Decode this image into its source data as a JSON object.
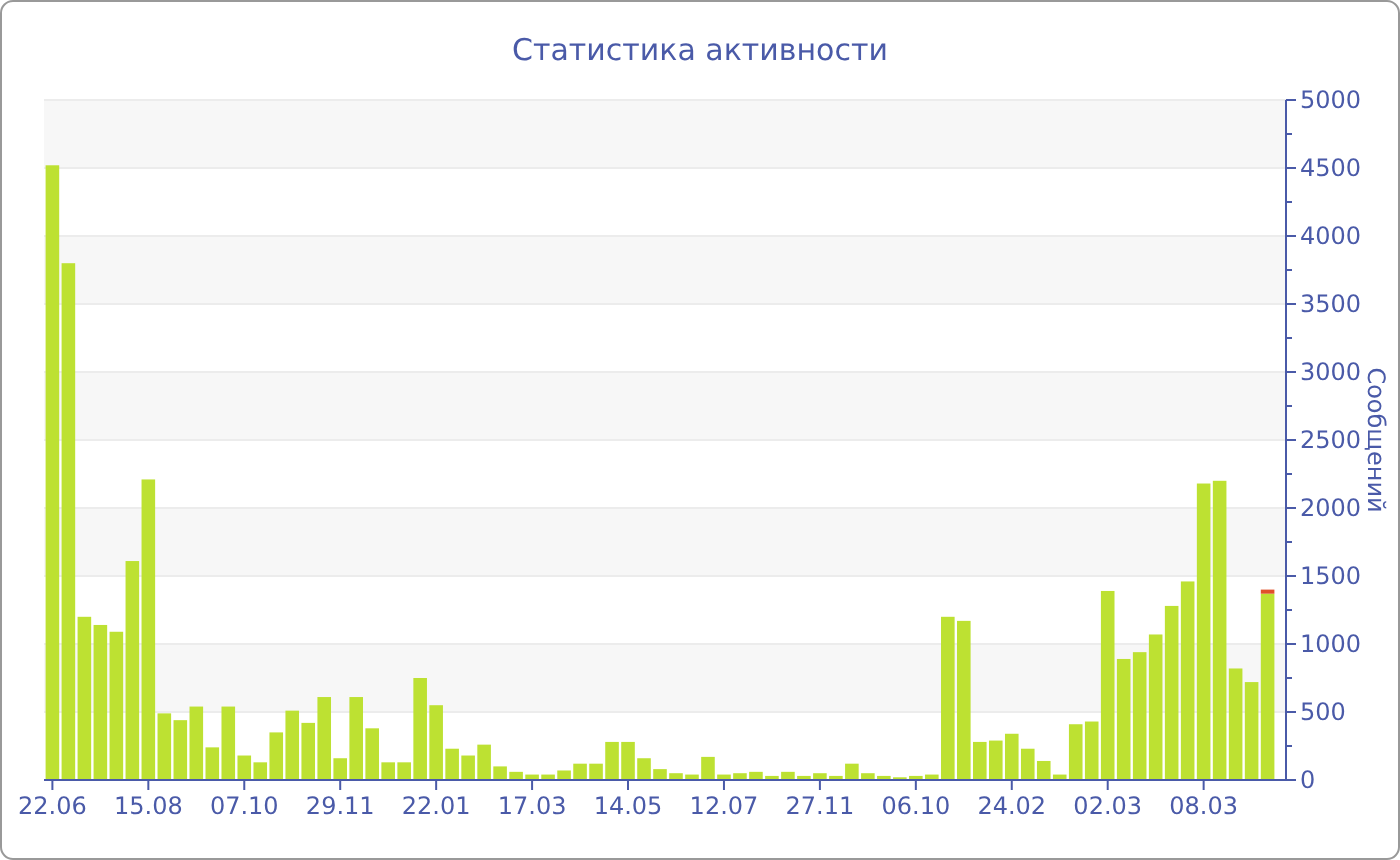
{
  "chart_data": {
    "type": "bar",
    "title": "Статистика активности",
    "ylabel": "Сообщений",
    "stacked": true,
    "categories": [
      "22.06",
      null,
      null,
      null,
      null,
      null,
      "15.08",
      null,
      null,
      null,
      null,
      null,
      "07.10",
      null,
      null,
      null,
      null,
      null,
      "29.11",
      null,
      null,
      null,
      null,
      null,
      "22.01",
      null,
      null,
      null,
      null,
      null,
      "17.03",
      null,
      null,
      null,
      null,
      null,
      "14.05",
      null,
      null,
      null,
      null,
      null,
      "12.07",
      null,
      null,
      null,
      null,
      null,
      "27.11",
      null,
      null,
      null,
      null,
      null,
      "06.10",
      null,
      null,
      null,
      null,
      null,
      "24.02",
      null,
      null,
      null,
      null,
      null,
      "02.03",
      null,
      null,
      null,
      null,
      null,
      "08.03",
      null,
      null,
      null,
      null
    ],
    "series": [
      {
        "color": "#bde132",
        "values": [
          4520,
          3800,
          1200,
          1140,
          1090,
          1610,
          2210,
          490,
          440,
          540,
          240,
          540,
          180,
          130,
          350,
          510,
          420,
          610,
          160,
          610,
          380,
          130,
          130,
          750,
          550,
          230,
          180,
          260,
          100,
          60,
          40,
          40,
          70,
          120,
          120,
          280,
          280,
          160,
          80,
          50,
          40,
          170,
          40,
          50,
          60,
          30,
          60,
          30,
          50,
          30,
          120,
          50,
          30,
          20,
          30,
          40,
          1200,
          1170,
          280,
          290,
          340,
          230,
          140,
          40,
          410,
          430,
          1390,
          890,
          940,
          1070,
          1280,
          1460,
          2180,
          2200,
          820,
          720,
          1370
        ]
      },
      {
        "color": "#e0502a",
        "values": [
          null,
          null,
          null,
          null,
          null,
          null,
          null,
          null,
          null,
          null,
          null,
          null,
          null,
          null,
          null,
          null,
          null,
          null,
          null,
          null,
          null,
          null,
          null,
          null,
          null,
          null,
          null,
          null,
          null,
          null,
          null,
          null,
          null,
          null,
          null,
          null,
          null,
          null,
          null,
          null,
          null,
          null,
          null,
          null,
          null,
          null,
          null,
          null,
          null,
          null,
          null,
          null,
          null,
          null,
          null,
          null,
          null,
          null,
          null,
          null,
          null,
          null,
          null,
          null,
          null,
          null,
          null,
          null,
          null,
          null,
          null,
          null,
          null,
          null,
          null,
          null,
          30
        ]
      }
    ],
    "ylim": [
      0,
      5000
    ],
    "yticks": [
      0,
      {
        "value": 250,
        "label": null
      },
      500,
      {
        "value": 750,
        "label": null
      },
      1000,
      {
        "value": 1250,
        "label": null
      },
      1500,
      {
        "value": 1750,
        "label": null
      },
      2000,
      {
        "value": 2250,
        "label": null
      },
      2500,
      {
        "value": 2750,
        "label": null
      },
      3000,
      {
        "value": 3250,
        "label": null
      },
      3500,
      {
        "value": 3750,
        "label": null
      },
      4000,
      {
        "value": 4250,
        "label": null
      },
      4500,
      {
        "value": 4750,
        "label": null
      },
      5000
    ],
    "grid": true
  }
}
